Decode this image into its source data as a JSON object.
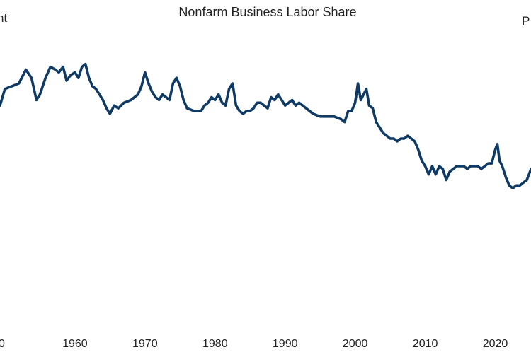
{
  "chart_data": {
    "type": "line",
    "title": "Nonfarm Business Labor Share",
    "left_axis_label_fragment": "nt",
    "right_axis_label_fragment": "P",
    "xlabel": "",
    "ylabel": "",
    "x_tick_labels": [
      "0",
      "1960",
      "1970",
      "1980",
      "1990",
      "2000",
      "2010",
      "2020"
    ],
    "xlim": [
      1949.3,
      2025.1
    ],
    "ylim": [
      0,
      100
    ],
    "grid": false,
    "legend": "none",
    "line_color": "#0f3a65",
    "series": [
      {
        "x": [
          1949.3,
          1950.0,
          1951.0,
          1952.0,
          1953.0,
          1953.8,
          1954.5,
          1955.0,
          1955.8,
          1956.5,
          1957.2,
          1957.7,
          1958.3,
          1958.8,
          1959.4,
          1960.0,
          1960.5,
          1961.0,
          1961.5,
          1962.0,
          1962.5,
          1963.0,
          1963.5,
          1964.0,
          1964.5,
          1965.0,
          1965.6,
          1966.2,
          1967.0,
          1968.0,
          1969.0,
          1969.5,
          1970.0,
          1970.5,
          1971.0,
          1971.5,
          1972.0,
          1972.5,
          1973.0,
          1973.5,
          1974.0,
          1974.5,
          1975.0,
          1975.5,
          1976.0,
          1977.0,
          1978.0,
          1978.5,
          1979.0,
          1979.5,
          1980.0,
          1980.5,
          1981.0,
          1981.5,
          1982.0,
          1982.5,
          1983.0,
          1983.5,
          1984.0,
          1984.5,
          1985.0,
          1985.5,
          1986.0,
          1986.5,
          1987.0,
          1987.5,
          1988.0,
          1988.5,
          1989.0,
          1989.5,
          1990.0,
          1990.5,
          1991.0,
          1991.5,
          1992.0,
          1992.5,
          1993.0,
          1994.0,
          1995.0,
          1996.0,
          1997.0,
          1998.0,
          1998.5,
          1999.0,
          1999.5,
          2000.0,
          2000.4,
          2000.8,
          2001.2,
          2001.6,
          2002.0,
          2002.5,
          2003.0,
          2003.5,
          2004.0,
          2004.5,
          2005.0,
          2005.5,
          2006.0,
          2006.5,
          2007.0,
          2007.5,
          2008.0,
          2008.5,
          2009.0,
          2009.5,
          2010.0,
          2010.5,
          2011.0,
          2011.5,
          2012.0,
          2012.5,
          2013.0,
          2013.5,
          2014.0,
          2014.5,
          2015.0,
          2015.5,
          2016.0,
          2016.5,
          2017.0,
          2017.5,
          2018.0,
          2018.5,
          2019.0,
          2019.5,
          2020.0,
          2020.3,
          2020.6,
          2021.0,
          2021.5,
          2022.0,
          2022.5,
          2023.0,
          2023.5,
          2024.0,
          2024.5,
          2025.1
        ],
        "y": [
          72,
          78,
          79,
          80,
          85,
          82,
          74,
          76,
          82,
          86,
          85,
          84,
          86,
          81,
          83,
          84,
          82,
          86,
          87,
          82,
          79,
          78,
          76,
          74,
          71,
          69,
          72,
          71,
          73,
          74,
          76,
          79,
          84,
          80,
          77,
          75,
          74,
          76,
          75,
          74,
          80,
          82,
          79,
          74,
          71,
          70,
          70,
          72,
          73,
          75,
          74,
          76,
          73,
          72,
          78,
          80,
          72,
          70,
          69,
          70,
          70,
          71,
          73,
          73,
          72,
          71,
          75,
          74,
          76,
          74,
          72,
          73,
          74,
          72,
          73,
          72,
          71,
          69,
          68,
          68,
          68,
          67,
          66,
          70,
          70,
          73,
          80,
          74,
          76,
          78,
          72,
          71,
          66,
          64,
          62,
          61,
          60,
          60,
          59,
          60,
          60,
          61,
          60,
          59,
          56,
          52,
          50,
          47,
          50,
          47,
          50,
          49,
          45,
          48,
          49,
          50,
          50,
          50,
          49,
          50,
          50,
          50,
          49,
          50,
          51,
          51,
          56,
          58,
          52,
          50,
          46,
          43,
          42,
          43,
          43,
          44,
          45,
          49
        ]
      }
    ]
  }
}
